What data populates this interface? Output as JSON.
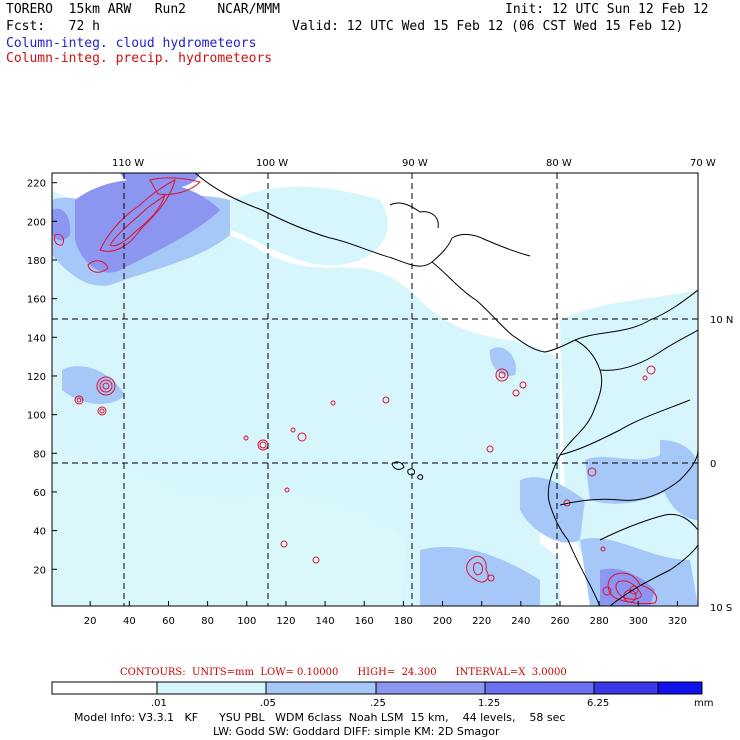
{
  "header": {
    "model": "TORERO  15km ARW   Run2    NCAR/MMM",
    "init": "Init: 12 UTC Sun 12 Feb 12",
    "fcst": "Fcst:   72 h",
    "valid": "Valid: 12 UTC Wed 15 Feb 12 (06 CST Wed 15 Feb 12)",
    "field1": "Column-integ. cloud hydrometeors",
    "field2": "Column-integ. precip. hydrometeors"
  },
  "axes": {
    "top_lon": [
      "110 W",
      "100 W",
      "90 W",
      "80 W",
      "70 W"
    ],
    "right_lat": [
      "10 N",
      "0",
      "10 S"
    ],
    "x_ticks": [
      "20",
      "40",
      "60",
      "80",
      "100",
      "120",
      "140",
      "160",
      "180",
      "200",
      "220",
      "240",
      "260",
      "280",
      "300",
      "320"
    ],
    "y_ticks": [
      "20",
      "40",
      "60",
      "80",
      "100",
      "120",
      "140",
      "160",
      "180",
      "200",
      "220"
    ]
  },
  "contours_line": "CONTOURS:  UNITS=mm  LOW= 0.10000      HIGH=  24.300      INTERVAL=X  3.0000",
  "colorbar": {
    "labels": [
      ".01",
      ".05",
      ".25",
      "1.25",
      "6.25"
    ],
    "unit": "mm",
    "colors": [
      "#ffffff",
      "#d6f6fc",
      "#a6c8f8",
      "#8c96f0",
      "#6a6ff0",
      "#3a3ae8",
      "#1111ee"
    ]
  },
  "model_info": {
    "line1": "Model Info: V3.3.1   KF      YSU PBL   WDM 6class  Noah LSM  15 km,    44 levels,    58 sec",
    "line2": "LW: Godd SW: Goddard DIFF: simple KM: 2D Smagor"
  },
  "colors": {
    "cloud": "#2222cc",
    "precip": "#cc1111",
    "light_cyan": "#d6f6fc",
    "med_blue": "#a6c8f8",
    "dark_blue": "#8c96f0"
  }
}
